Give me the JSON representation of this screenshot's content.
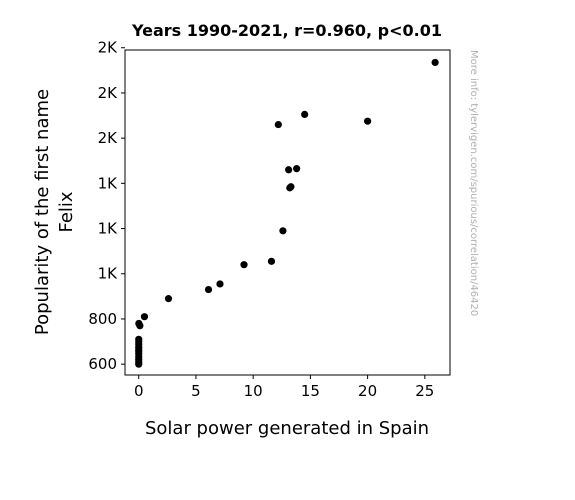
{
  "chart_data": {
    "type": "scatter",
    "title": "Years 1990-2021, r=0.960, p<0.01",
    "xlabel": "Solar power generated in Spain",
    "ylabel_lines": [
      "Popularity of the first name",
      "Felix"
    ],
    "xlim": [
      -1.2,
      27.2
    ],
    "ylim": [
      552,
      1990
    ],
    "x_ticks": [
      {
        "value": 0,
        "label": "0"
      },
      {
        "value": 5,
        "label": "5"
      },
      {
        "value": 10,
        "label": "10"
      },
      {
        "value": 15,
        "label": "15"
      },
      {
        "value": 20,
        "label": "20"
      },
      {
        "value": 25,
        "label": "25"
      }
    ],
    "y_ticks": [
      {
        "value": 600,
        "label": "600"
      },
      {
        "value": 800,
        "label": "800"
      },
      {
        "value": 1000,
        "label": "1K"
      },
      {
        "value": 1200,
        "label": "1K"
      },
      {
        "value": 1400,
        "label": "1K"
      },
      {
        "value": 1600,
        "label": "2K"
      },
      {
        "value": 1800,
        "label": "2K"
      },
      {
        "value": 2000,
        "label": "2K"
      }
    ],
    "grid": false,
    "marker_color": "#000000",
    "points": [
      {
        "x": 0.0,
        "y": 600
      },
      {
        "x": 0.0,
        "y": 610
      },
      {
        "x": 0.0,
        "y": 620
      },
      {
        "x": 0.0,
        "y": 632
      },
      {
        "x": 0.0,
        "y": 645
      },
      {
        "x": 0.0,
        "y": 655
      },
      {
        "x": 0.0,
        "y": 665
      },
      {
        "x": 0.0,
        "y": 675
      },
      {
        "x": 0.0,
        "y": 688
      },
      {
        "x": 0.0,
        "y": 700
      },
      {
        "x": 0.0,
        "y": 710
      },
      {
        "x": 0.01,
        "y": 780
      },
      {
        "x": 0.1,
        "y": 770
      },
      {
        "x": 0.5,
        "y": 810
      },
      {
        "x": 2.6,
        "y": 890
      },
      {
        "x": 6.1,
        "y": 930
      },
      {
        "x": 7.1,
        "y": 955
      },
      {
        "x": 9.2,
        "y": 1040
      },
      {
        "x": 11.6,
        "y": 1055
      },
      {
        "x": 12.6,
        "y": 1190
      },
      {
        "x": 13.2,
        "y": 1380
      },
      {
        "x": 13.3,
        "y": 1385
      },
      {
        "x": 13.1,
        "y": 1460
      },
      {
        "x": 13.8,
        "y": 1465
      },
      {
        "x": 12.2,
        "y": 1660
      },
      {
        "x": 14.5,
        "y": 1705
      },
      {
        "x": 20.0,
        "y": 1675
      },
      {
        "x": 25.9,
        "y": 1935
      }
    ],
    "watermark": "More info: tylervigen.com/spurious/correlation/46420"
  }
}
